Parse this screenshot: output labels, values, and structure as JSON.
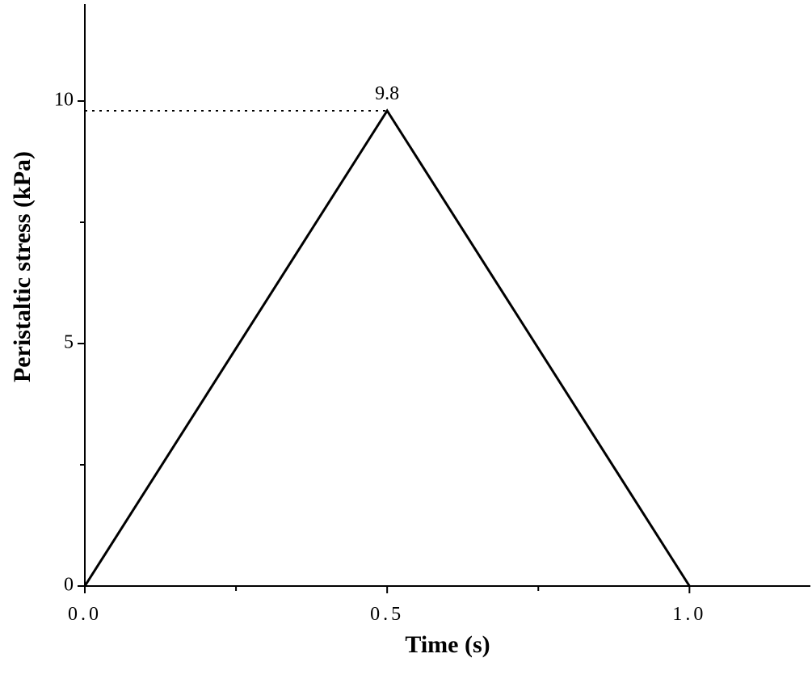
{
  "chart_data": {
    "type": "line",
    "x_label": "Time (s)",
    "y_label": "Peristaltic stress (kPa)",
    "x": [
      0,
      0.5,
      1.0
    ],
    "series": [
      {
        "name": "Peristaltic stress",
        "color": "#000000",
        "values": [
          0,
          9.8,
          0
        ],
        "value_labels": [
          null,
          "9.8",
          null
        ]
      }
    ],
    "xlim": [
      0,
      1.2
    ],
    "ylim": [
      0,
      12
    ],
    "xticks": [
      {
        "value": 0,
        "label": "0.0"
      },
      {
        "value": 0.5,
        "label": "0.5"
      },
      {
        "value": 1.0,
        "label": "1.0"
      }
    ],
    "yticks": [
      0,
      5,
      10
    ],
    "xminorticks": [
      0.25,
      0.75
    ],
    "yminorticks": [
      2.5,
      7.5
    ],
    "grid": false,
    "legend": false
  }
}
